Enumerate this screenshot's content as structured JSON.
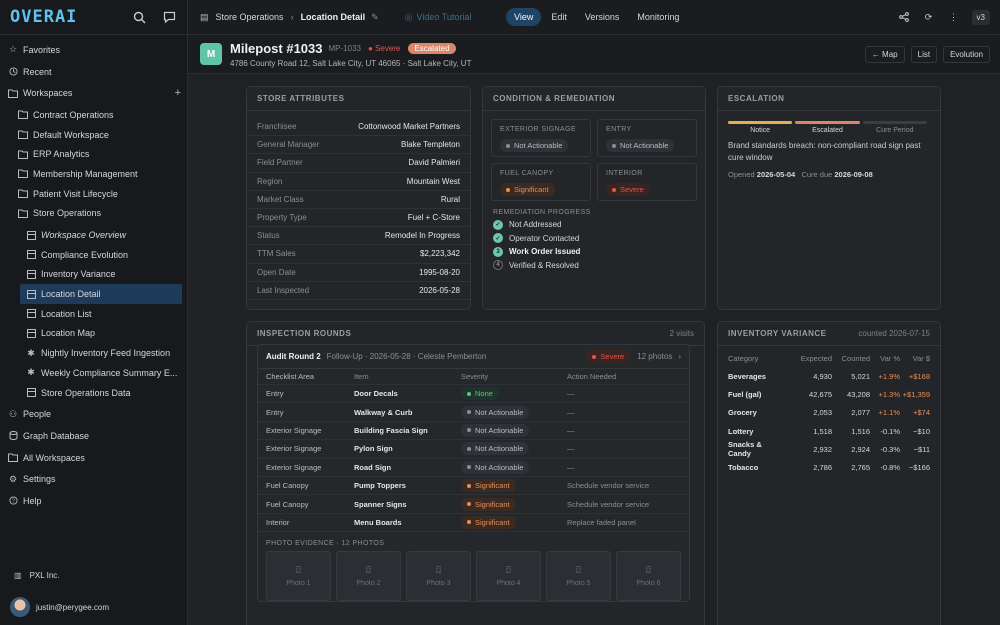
{
  "app": {
    "logo": "OVERAI"
  },
  "sidebar": {
    "items": [
      {
        "label": "Favorites",
        "icon": "star-icon"
      },
      {
        "label": "Recent",
        "icon": "clock-icon"
      },
      {
        "label": "Workspaces",
        "icon": "folder-icon"
      }
    ],
    "workspaces": [
      "Contract Operations",
      "Default Workspace",
      "ERP Analytics",
      "Membership Management",
      "Patient Visit Lifecycle",
      "Store Operations"
    ],
    "store_ops": [
      "Workspace Overview",
      "Compliance Evolution",
      "Inventory Variance",
      "Location Detail",
      "Location List",
      "Location Map",
      "Nightly Inventory Feed Ingestion",
      "Weekly Compliance Summary E...",
      "Store Operations Data"
    ],
    "bottom": [
      "People",
      "Graph Database",
      "All Workspaces",
      "Settings",
      "Help"
    ],
    "org": "PXL Inc.",
    "user": "justin@perygee.com"
  },
  "topbar": {
    "crumb1": "Store Operations",
    "crumb2": "Location Detail",
    "tutorial": "Video Tutorial",
    "tabs": [
      "View",
      "Edit",
      "Versions",
      "Monitoring"
    ],
    "version": "v3"
  },
  "header": {
    "badge": "M",
    "title": "Milepost #1033",
    "code": "MP-1033",
    "severity": "Severe",
    "status": "Escalated",
    "address": "4786 County Road 12, Salt Lake City, UT 46065 · Salt Lake City, UT",
    "buttons": [
      "← Map",
      "List",
      "Evolution"
    ]
  },
  "attributes": {
    "title": "STORE ATTRIBUTES",
    "rows": [
      {
        "k": "Franchisee",
        "v": "Cottonwood Market Partners"
      },
      {
        "k": "General Manager",
        "v": "Blake Templeton"
      },
      {
        "k": "Field Partner",
        "v": "David Palmieri"
      },
      {
        "k": "Region",
        "v": "Mountain West"
      },
      {
        "k": "Market Class",
        "v": "Rural"
      },
      {
        "k": "Property Type",
        "v": "Fuel + C-Store"
      },
      {
        "k": "Status",
        "v": "Remodel In Progress"
      },
      {
        "k": "TTM Sales",
        "v": "$2,223,342"
      },
      {
        "k": "Open Date",
        "v": "1995-08-20"
      },
      {
        "k": "Last Inspected",
        "v": "2026-05-28"
      }
    ]
  },
  "condition": {
    "title": "CONDITION & REMEDIATION",
    "boxes": [
      {
        "label": "EXTERIOR SIGNAGE",
        "value": "Not Actionable"
      },
      {
        "label": "ENTRY",
        "value": "Not Actionable"
      },
      {
        "label": "FUEL CANOPY",
        "value": "Significant"
      },
      {
        "label": "INTERIOR",
        "value": "Severe"
      }
    ],
    "remediation_title": "REMEDIATION PROGRESS",
    "steps": [
      "Not Addressed",
      "Operator Contacted",
      "Work Order Issued",
      "Verified & Resolved"
    ],
    "step_marks": [
      "✓",
      "✓",
      "3",
      "4"
    ]
  },
  "escalation": {
    "title": "ESCALATION",
    "levels": [
      "Notice",
      "Escalated",
      "Cure Period"
    ],
    "text": "Brand standards breach: non-compliant road sign past cure window",
    "opened_label": "Opened",
    "opened": "2026-05-04",
    "cure_label": "Cure due",
    "cure": "2026-09-08",
    "colors": {
      "notice": "#e2b04a",
      "escalated": "#d9866a",
      "cure": "#3a3e44"
    }
  },
  "inspection": {
    "title": "INSPECTION ROUNDS",
    "visits": "2 visits",
    "round": "Audit Round 2",
    "meta": "Follow-Up · 2026-05-28 · Celeste Pemberton",
    "severity": "Severe",
    "photos_count": "12 photos",
    "headers": [
      "Checklist Area",
      "Item",
      "Severity",
      "Action Needed"
    ],
    "rows": [
      {
        "area": "Entry",
        "item": "Door Decals",
        "sev": "None",
        "action": "—"
      },
      {
        "area": "Entry",
        "item": "Walkway & Curb",
        "sev": "Not Actionable",
        "action": "—"
      },
      {
        "area": "Exterior Signage",
        "item": "Building Fascia Sign",
        "sev": "Not Actionable",
        "action": "—"
      },
      {
        "area": "Exterior Signage",
        "item": "Pylon Sign",
        "sev": "Not Actionable",
        "action": "—"
      },
      {
        "area": "Exterior Signage",
        "item": "Road Sign",
        "sev": "Not Actionable",
        "action": "—"
      },
      {
        "area": "Fuel Canopy",
        "item": "Pump Toppers",
        "sev": "Significant",
        "action": "Schedule vendor service"
      },
      {
        "area": "Fuel Canopy",
        "item": "Spanner Signs",
        "sev": "Significant",
        "action": "Schedule vendor service"
      },
      {
        "area": "Interior",
        "item": "Menu Boards",
        "sev": "Significant",
        "action": "Replace faded panel"
      }
    ],
    "evidence_title": "PHOTO EVIDENCE · 12 PHOTOS",
    "photos": [
      "Photo 1",
      "Photo 2",
      "Photo 3",
      "Photo 4",
      "Photo 5",
      "Photo 6"
    ]
  },
  "inventory": {
    "title": "INVENTORY VARIANCE",
    "counted": "counted 2026-07-15",
    "headers": [
      "Category",
      "Expected",
      "Counted",
      "Var %",
      "Var $"
    ],
    "rows": [
      {
        "cat": "Beverages",
        "exp": "4,930",
        "cnt": "5,021",
        "pct": "+1.9%",
        "usd": "+$168",
        "pos": true
      },
      {
        "cat": "Fuel (gal)",
        "exp": "42,675",
        "cnt": "43,208",
        "pct": "+1.3%",
        "usd": "+$1,359",
        "pos": true
      },
      {
        "cat": "Grocery",
        "exp": "2,053",
        "cnt": "2,077",
        "pct": "+1.1%",
        "usd": "+$74",
        "pos": true
      },
      {
        "cat": "Lottery",
        "exp": "1,518",
        "cnt": "1,516",
        "pct": "-0.1%",
        "usd": "−$10",
        "pos": false
      },
      {
        "cat": "Snacks & Candy",
        "exp": "2,932",
        "cnt": "2,924",
        "pct": "-0.3%",
        "usd": "−$11",
        "pos": false
      },
      {
        "cat": "Tobacco",
        "exp": "2,786",
        "cnt": "2,765",
        "pct": "-0.8%",
        "usd": "−$166",
        "pos": false
      }
    ]
  }
}
